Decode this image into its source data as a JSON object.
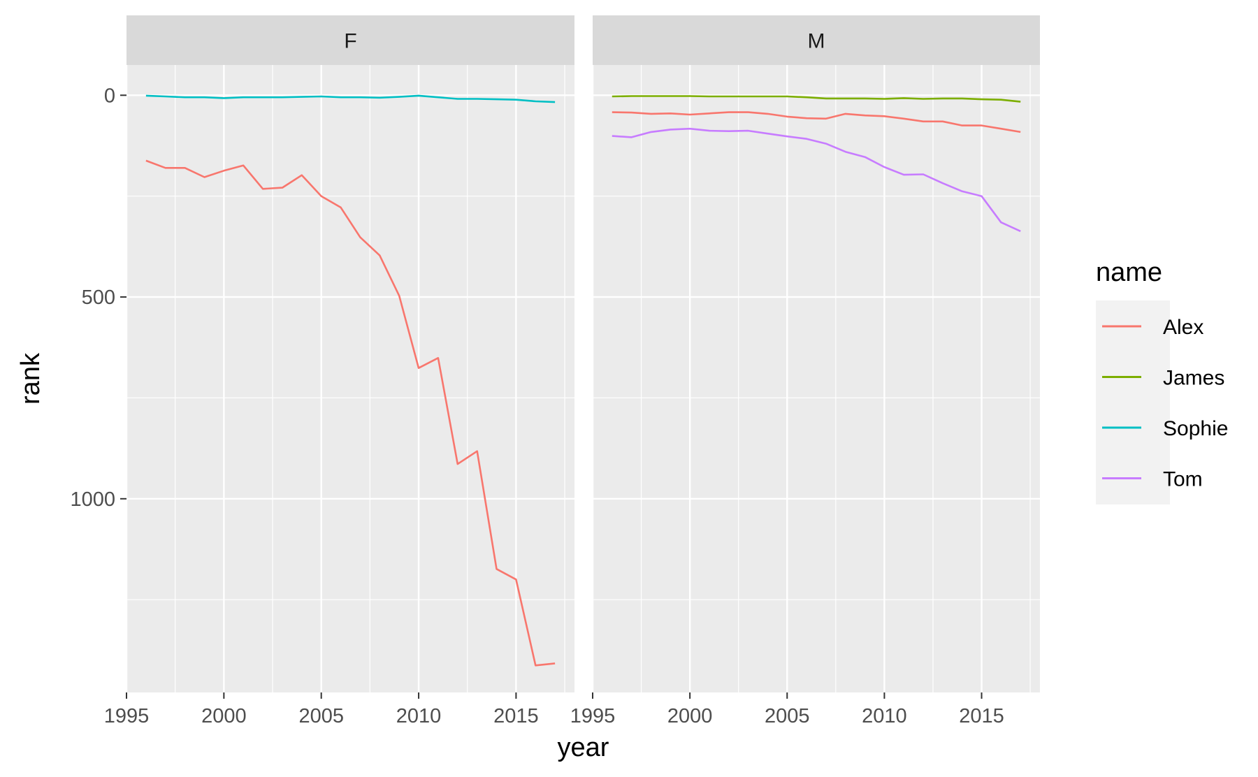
{
  "chart_data": {
    "type": "line",
    "xlabel": "year",
    "ylabel": "rank",
    "y_reversed": true,
    "grid": true,
    "facets": [
      "F",
      "M"
    ],
    "xlim": [
      1995,
      2018
    ],
    "ylim": [
      -75,
      1480
    ],
    "x_ticks": [
      "1995",
      "2000",
      "2005",
      "2010",
      "2015"
    ],
    "y_ticks": [
      "0",
      "500",
      "1000"
    ],
    "legend": {
      "title": "name",
      "position": "right",
      "items": [
        {
          "name": "Alex",
          "color": "#F8766D"
        },
        {
          "name": "James",
          "color": "#7CAE00"
        },
        {
          "name": "Sophie",
          "color": "#00BFC4"
        },
        {
          "name": "Tom",
          "color": "#C77CFF"
        }
      ]
    },
    "panels": [
      {
        "facet": "F",
        "series": [
          {
            "name": "Alex",
            "color": "#F8766D",
            "x": [
              1996,
              1997,
              1998,
              1999,
              2000,
              2001,
              2002,
              2003,
              2004,
              2005,
              2006,
              2007,
              2008,
              2009,
              2010,
              2011,
              2012,
              2013,
              2014,
              2015,
              2016,
              2017
            ],
            "y": [
              162,
              180,
              180,
              203,
              187,
              174,
              232,
              229,
              198,
              250,
              278,
              352,
              397,
              497,
              676,
              651,
              914,
              882,
              1174,
              1200,
              1413,
              1408
            ]
          },
          {
            "name": "Sophie",
            "color": "#00BFC4",
            "x": [
              1996,
              1997,
              1998,
              1999,
              2000,
              2001,
              2002,
              2003,
              2004,
              2005,
              2006,
              2007,
              2008,
              2009,
              2010,
              2011,
              2012,
              2013,
              2014,
              2015,
              2016,
              2017
            ],
            "y": [
              1,
              3,
              5,
              5,
              7,
              5,
              5,
              5,
              4,
              3,
              5,
              5,
              6,
              4,
              1,
              5,
              9,
              9,
              10,
              11,
              15,
              17
            ]
          }
        ]
      },
      {
        "facet": "M",
        "series": [
          {
            "name": "Alex",
            "color": "#F8766D",
            "x": [
              1996,
              1997,
              1998,
              1999,
              2000,
              2001,
              2002,
              2003,
              2004,
              2005,
              2006,
              2007,
              2008,
              2009,
              2010,
              2011,
              2012,
              2013,
              2014,
              2015,
              2016,
              2017
            ],
            "y": [
              42,
              43,
              46,
              45,
              48,
              45,
              42,
              42,
              46,
              53,
              57,
              58,
              46,
              50,
              52,
              58,
              65,
              65,
              75,
              75,
              83,
              91
            ]
          },
          {
            "name": "James",
            "color": "#7CAE00",
            "x": [
              1996,
              1997,
              1998,
              1999,
              2000,
              2001,
              2002,
              2003,
              2004,
              2005,
              2006,
              2007,
              2008,
              2009,
              2010,
              2011,
              2012,
              2013,
              2014,
              2015,
              2016,
              2017
            ],
            "y": [
              3,
              2,
              2,
              2,
              2,
              3,
              3,
              3,
              3,
              3,
              5,
              8,
              8,
              8,
              9,
              7,
              9,
              8,
              8,
              10,
              11,
              16
            ]
          },
          {
            "name": "Tom",
            "color": "#C77CFF",
            "x": [
              1996,
              1997,
              1998,
              1999,
              2000,
              2001,
              2002,
              2003,
              2004,
              2005,
              2006,
              2007,
              2008,
              2009,
              2010,
              2011,
              2012,
              2013,
              2014,
              2015,
              2016,
              2017
            ],
            "y": [
              101,
              104,
              91,
              85,
              83,
              88,
              89,
              88,
              95,
              102,
              108,
              120,
              140,
              153,
              178,
              197,
              196,
              218,
              238,
              250,
              315,
              337
            ]
          }
        ]
      }
    ]
  }
}
